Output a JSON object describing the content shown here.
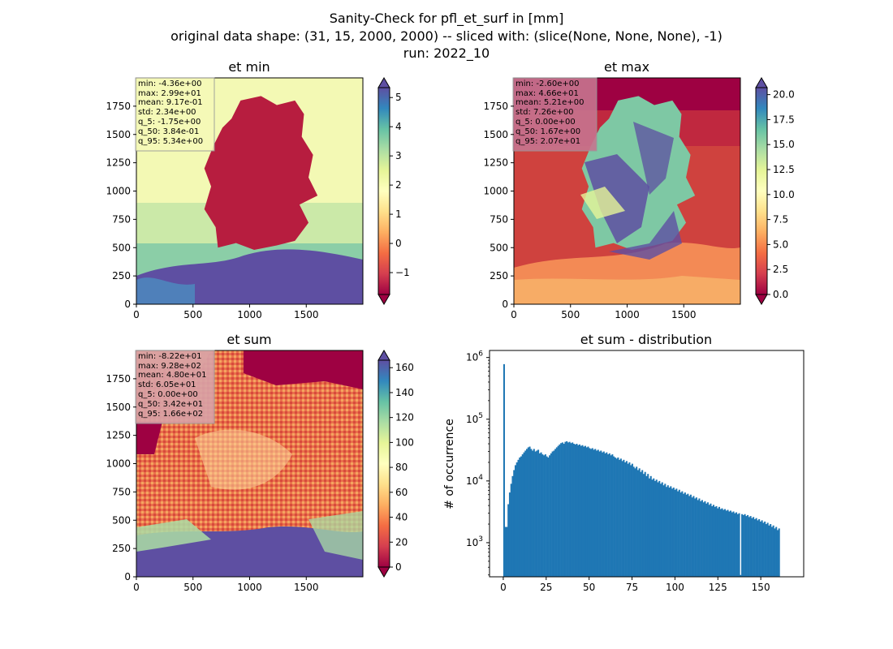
{
  "figure": {
    "suptitle_line1": "Sanity-Check for pfl_et_surf in [mm]",
    "suptitle_line2": "original data shape: (31, 15, 2000, 2000) -- sliced with: (slice(None, None, None), -1)",
    "suptitle_line3": "run: 2022_10"
  },
  "chart_data": [
    {
      "type": "heatmap",
      "title": "et min",
      "colormap": "Spectral",
      "colorbar_extend": "both",
      "xlim": [
        0,
        2000
      ],
      "ylim": [
        0,
        2000
      ],
      "x_ticks": [
        0,
        500,
        1000,
        1500
      ],
      "y_ticks": [
        0,
        250,
        500,
        750,
        1000,
        1250,
        1500,
        1750
      ],
      "clim": [
        -1.75,
        5.34
      ],
      "colorbar_ticks": [
        -1,
        0,
        1,
        2,
        3,
        4,
        5
      ],
      "stats_box": [
        "min: -4.36e+00",
        "max: 2.99e+01",
        "mean: 9.17e-01",
        "std: 2.34e+00",
        "q_5: -1.75e+00",
        "q_50: 3.84e-01",
        "q_95: 5.34e+00"
      ],
      "stats_box_color": "#f6fab8"
    },
    {
      "type": "heatmap",
      "title": "et max",
      "colormap": "Spectral",
      "colorbar_extend": "both",
      "xlim": [
        0,
        2000
      ],
      "ylim": [
        0,
        2000
      ],
      "x_ticks": [
        0,
        500,
        1000,
        1500
      ],
      "y_ticks": [
        0,
        250,
        500,
        750,
        1000,
        1250,
        1500,
        1750
      ],
      "clim": [
        0,
        20.7
      ],
      "colorbar_ticks": [
        0.0,
        2.5,
        5.0,
        7.5,
        10.0,
        12.5,
        15.0,
        17.5,
        20.0
      ],
      "colorbar_tick_labels": [
        "0.0",
        "2.5",
        "5.0",
        "7.5",
        "10.0",
        "12.5",
        "15.0",
        "17.5",
        "20.0"
      ],
      "stats_box": [
        "min: -2.60e+00",
        "max: 4.66e+01",
        "mean: 5.21e+00",
        "std: 7.26e+00",
        "q_5: 0.00e+00",
        "q_50: 1.67e+00",
        "q_95: 2.07e+01"
      ],
      "stats_box_color": "#c7758f"
    },
    {
      "type": "heatmap",
      "title": "et sum",
      "colormap": "Spectral",
      "colorbar_extend": "both",
      "xlim": [
        0,
        2000
      ],
      "ylim": [
        0,
        2000
      ],
      "x_ticks": [
        0,
        500,
        1000,
        1500
      ],
      "y_ticks": [
        0,
        250,
        500,
        750,
        1000,
        1250,
        1500,
        1750
      ],
      "clim": [
        0,
        166
      ],
      "colorbar_ticks": [
        0,
        20,
        40,
        60,
        80,
        100,
        120,
        140,
        160
      ],
      "stats_box": [
        "min: -8.22e+01",
        "max: 9.28e+02",
        "mean: 4.80e+01",
        "std: 6.05e+01",
        "q_5: 0.00e+00",
        "q_50: 3.42e+01",
        "q_95: 1.66e+02"
      ],
      "stats_box_color": "#d9a2a8"
    },
    {
      "type": "bar",
      "title": "et sum - distribution",
      "ylabel": "# of occurrence",
      "xlabel": "",
      "yscale": "log",
      "color": "#1f77b4",
      "xlim": [
        -8,
        175
      ],
      "ylim": [
        280,
        1300000
      ],
      "x_ticks": [
        0,
        25,
        50,
        75,
        100,
        125,
        150
      ],
      "y_ticks": [
        1000,
        10000,
        100000,
        1000000
      ],
      "y_tick_exponents": [
        "3",
        "4",
        "5",
        "6"
      ],
      "bin_start": 0,
      "bin_width": 0.83,
      "values": [
        780000,
        1800,
        1800,
        4200,
        6500,
        9000,
        12000,
        15000,
        18000,
        20000,
        22000,
        24000,
        25000,
        27000,
        29000,
        31000,
        33000,
        35000,
        36000,
        33000,
        31000,
        33000,
        30000,
        31000,
        32000,
        28000,
        29000,
        27000,
        26000,
        27000,
        25000,
        24000,
        26000,
        28000,
        30000,
        31000,
        33000,
        35000,
        37000,
        39000,
        41000,
        42000,
        40000,
        43000,
        44000,
        42000,
        43000,
        41000,
        42000,
        40000,
        39000,
        40000,
        38000,
        39000,
        37000,
        38000,
        36000,
        37000,
        35000,
        36000,
        34000,
        33000,
        34000,
        32000,
        33000,
        31000,
        32000,
        30000,
        31000,
        29000,
        30000,
        28000,
        29000,
        27000,
        28000,
        26000,
        27000,
        25000,
        24000,
        23000,
        24000,
        22000,
        23000,
        21000,
        22000,
        20000,
        21000,
        19000,
        20000,
        18000,
        19000,
        17000,
        16000,
        17000,
        15000,
        16000,
        14000,
        15000,
        13000,
        14000,
        12000,
        13000,
        11000,
        12000,
        10500,
        11000,
        10000,
        10500,
        9500,
        10000,
        9000,
        9500,
        8500,
        9000,
        8000,
        8500,
        7800,
        8200,
        7500,
        7800,
        7200,
        7500,
        6800,
        7200,
        6500,
        6800,
        6200,
        6500,
        6000,
        6200,
        5700,
        6000,
        5400,
        5700,
        5200,
        5400,
        4900,
        5200,
        4700,
        4900,
        4500,
        4700,
        4300,
        4500,
        4100,
        4300,
        3900,
        4100,
        3800,
        3900,
        3600,
        3800,
        3500,
        3600,
        3400,
        3500,
        3300,
        3400,
        3200,
        3300,
        3100,
        3200,
        3000,
        3100,
        2900,
        3000,
        300,
        2900,
        2800,
        2900,
        2700,
        2800,
        2600,
        2700,
        2500,
        2600,
        2400,
        2500,
        2300,
        2400,
        2200,
        2300,
        2100,
        2200,
        2000,
        2100,
        1900,
        2000,
        1800,
        1900,
        1700,
        1800,
        1600,
        1700
      ]
    }
  ]
}
